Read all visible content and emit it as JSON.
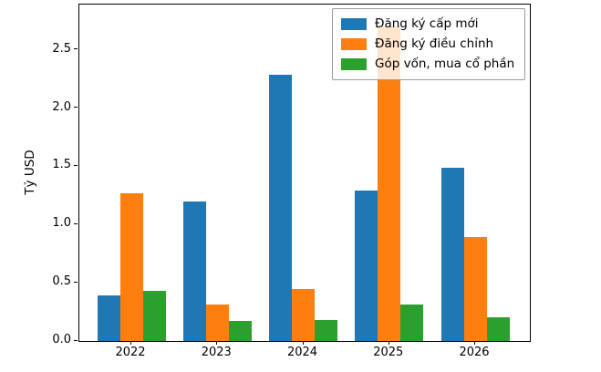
{
  "figure": {
    "background": "#ffffff",
    "axis_color": "#000000"
  },
  "chart_data": {
    "type": "bar",
    "title": "",
    "xlabel": "",
    "ylabel": "Tỷ USD",
    "categories": [
      "2022",
      "2023",
      "2024",
      "2025",
      "2026"
    ],
    "series": [
      {
        "name": "Đăng ký cấp mới",
        "color": "#1f77b4",
        "values": [
          0.39,
          1.2,
          2.29,
          1.29,
          1.49
        ]
      },
      {
        "name": "Đăng ký điều chỉnh",
        "color": "#ff7f0e",
        "values": [
          1.27,
          0.31,
          0.45,
          2.7,
          0.89
        ]
      },
      {
        "name": "Góp vốn, mua cổ phần",
        "color": "#2ca02c",
        "values": [
          0.43,
          0.17,
          0.18,
          0.31,
          0.2
        ]
      }
    ],
    "yticks": [
      "0.0",
      "0.5",
      "1.0",
      "1.5",
      "2.0",
      "2.5"
    ],
    "ytick_values": [
      0.0,
      0.5,
      1.0,
      1.5,
      2.0,
      2.5
    ],
    "ylim": [
      0,
      2.89
    ],
    "grid": false,
    "legend_position": "upper right"
  }
}
